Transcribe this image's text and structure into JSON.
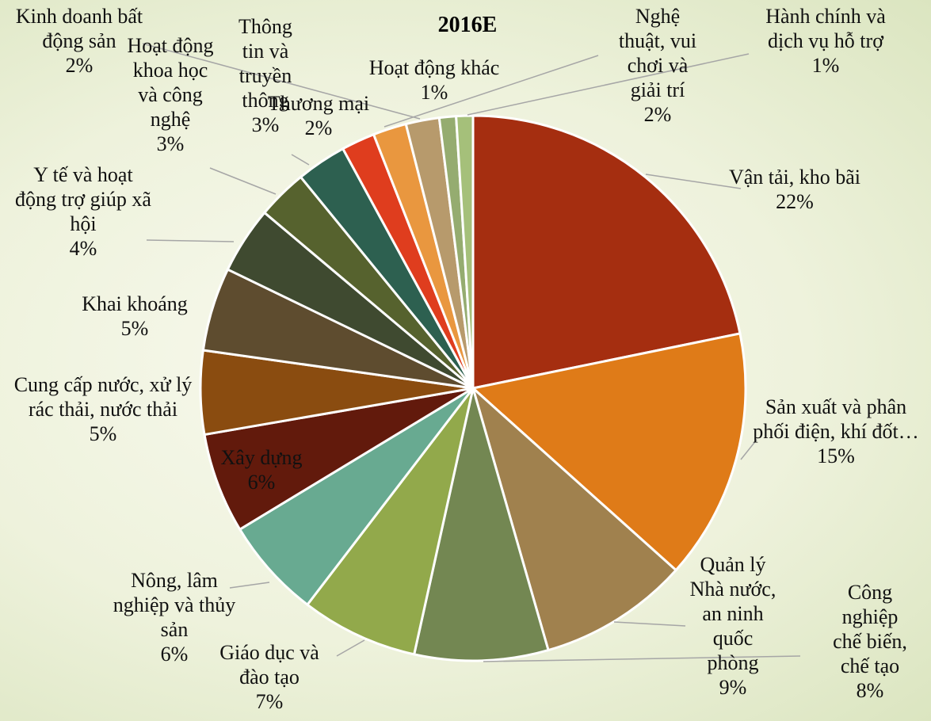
{
  "chart_data": {
    "type": "pie",
    "title": "2016E",
    "categories": [
      "Vận tải, kho bãi",
      "Sản xuất và phân phối điện, khí đốt…",
      "Quản lý Nhà nước, an ninh quốc phòng",
      "Công nghiệp chế biến, chế tạo",
      "Giáo dục và đào tạo",
      "Nông, lâm nghiệp và thủy sản",
      "Xây dựng",
      "Cung cấp nước, xử lý rác thải, nước thải",
      "Khai khoáng",
      "Y tế và hoạt động trợ giúp xã hội",
      "Hoạt động khoa học và công nghệ",
      "Thông tin và truyền thông",
      "Thương mại",
      "Nghệ thuật, vui chơi và giải trí",
      "Kinh doanh bất động sản",
      "Hoạt động khác",
      "Hành chính và dịch vụ hỗ trợ"
    ],
    "values": [
      22,
      15,
      9,
      8,
      7,
      6,
      6,
      5,
      5,
      4,
      3,
      3,
      2,
      2,
      2,
      1,
      1
    ],
    "value_labels": [
      "22%",
      "15%",
      "9%",
      "8%",
      "7%",
      "6%",
      "6%",
      "5%",
      "5%",
      "4%",
      "3%",
      "3%",
      "2%",
      "2%",
      "2%",
      "1%",
      "1%"
    ],
    "colors": [
      "#a52e10",
      "#df7b18",
      "#a0814e",
      "#738752",
      "#92a94b",
      "#68aa91",
      "#621a0c",
      "#8a4c10",
      "#5e4c2f",
      "#3f4a30",
      "#56622e",
      "#2d6050",
      "#df3d1e",
      "#e9973f",
      "#b79a6c",
      "#95ac70",
      "#a5c07a"
    ]
  }
}
